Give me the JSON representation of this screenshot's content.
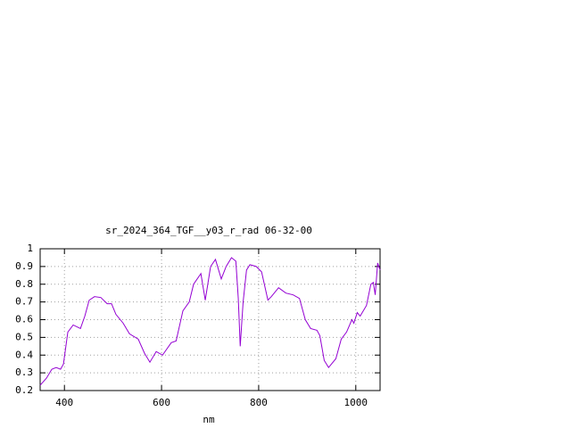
{
  "chart_data": {
    "type": "line",
    "title": "sr_2024_364_TGF__y03_r_rad 06-32-00",
    "x_label": "nm",
    "x": [
      350,
      363,
      374,
      383,
      392,
      398,
      403,
      407,
      418,
      433,
      442,
      451,
      462,
      475,
      488,
      497,
      506,
      521,
      534,
      552,
      565,
      576,
      589,
      602,
      620,
      630,
      644,
      657,
      666,
      681,
      690,
      701,
      711,
      723,
      733,
      744,
      753,
      758,
      762,
      768,
      775,
      782,
      795,
      806,
      819,
      826,
      841,
      856,
      871,
      884,
      896,
      907,
      920,
      926,
      935,
      944,
      959,
      970,
      981,
      992,
      996,
      1003,
      1009,
      1022,
      1031,
      1036,
      1040,
      1045,
      1050
    ],
    "series": [
      {
        "name": "sr_2024_364_TGF__y03_r_rad",
        "color": "#9400d3",
        "values": [
          0.23,
          0.27,
          0.32,
          0.33,
          0.32,
          0.35,
          0.45,
          0.53,
          0.57,
          0.55,
          0.62,
          0.71,
          0.73,
          0.725,
          0.69,
          0.69,
          0.63,
          0.58,
          0.52,
          0.49,
          0.41,
          0.36,
          0.42,
          0.4,
          0.47,
          0.48,
          0.65,
          0.7,
          0.8,
          0.86,
          0.71,
          0.9,
          0.94,
          0.83,
          0.9,
          0.95,
          0.93,
          0.72,
          0.45,
          0.7,
          0.88,
          0.91,
          0.9,
          0.87,
          0.71,
          0.73,
          0.78,
          0.75,
          0.74,
          0.72,
          0.6,
          0.55,
          0.54,
          0.51,
          0.37,
          0.33,
          0.38,
          0.49,
          0.53,
          0.6,
          0.58,
          0.64,
          0.62,
          0.68,
          0.8,
          0.81,
          0.74,
          0.92,
          0.88
        ]
      }
    ],
    "xlim": [
      350,
      1050
    ],
    "ylim": [
      0.2,
      1
    ],
    "xticks": [
      400,
      600,
      800,
      1000
    ],
    "yticks": [
      0.2,
      0.3,
      0.4,
      0.5,
      0.6,
      0.7,
      0.8,
      0.9,
      1
    ],
    "grid": true
  }
}
